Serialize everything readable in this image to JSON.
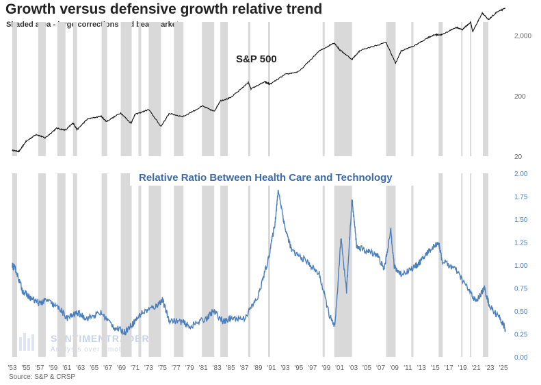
{
  "title": "Growth versus defensive growth relative trend",
  "subtitle": "Shaded area - large corrections and bear markets",
  "source": "Source: S&P & CRSP",
  "watermark": {
    "name": "SENTIMENTRADER",
    "tagline": "Analysis over Emotion"
  },
  "colors": {
    "shade": "#d9d9d9",
    "top_line": "#111111",
    "bottom_line": "#4a7ebb",
    "bottom_axis": "#4a7ebb"
  },
  "chart_data": [
    {
      "type": "line",
      "annotation": "S&P 500",
      "scale": "log",
      "ylim": [
        20,
        4800
      ],
      "yticks": [
        20,
        200,
        2000
      ],
      "ytick_labels": [
        "20",
        "200",
        "2,000"
      ],
      "xlim": [
        1953,
        2025.6
      ],
      "x": [
        1953.0,
        1954.0,
        1955.0,
        1956.5,
        1957.8,
        1959.5,
        1960.8,
        1961.9,
        1962.5,
        1964,
        1966,
        1966.8,
        1968.9,
        1970.4,
        1971,
        1973,
        1974.8,
        1976,
        1978,
        1980.9,
        1982.6,
        1983.5,
        1985,
        1987.6,
        1988,
        1990,
        1990.8,
        1993,
        1995,
        1998,
        2000.2,
        2001,
        2002.8,
        2004,
        2007.8,
        2009.2,
        2010,
        2012,
        2014,
        2015,
        2016,
        2018,
        2019,
        2020.2,
        2020.5,
        2021.9,
        2022.8,
        2024,
        2025.3
      ],
      "values": [
        25,
        24,
        35,
        46,
        40,
        58,
        54,
        71,
        55,
        82,
        92,
        75,
        104,
        70,
        98,
        118,
        62,
        102,
        90,
        135,
        110,
        165,
        185,
        330,
        260,
        340,
        310,
        450,
        500,
        1100,
        1500,
        1150,
        800,
        1130,
        1520,
        690,
        1100,
        1350,
        1850,
        2050,
        2040,
        2700,
        2500,
        3300,
        2300,
        4700,
        3600,
        4800,
        5600
      ],
      "shaded_periods": [
        [
          1953.0,
          1953.7
        ],
        [
          1956.8,
          1957.9
        ],
        [
          1959.6,
          1960.8
        ],
        [
          1961.9,
          1962.5
        ],
        [
          1966.1,
          1966.9
        ],
        [
          1968.9,
          1970.5
        ],
        [
          1971.5,
          1971.9
        ],
        [
          1973.0,
          1974.8
        ],
        [
          1976.7,
          1978.1
        ],
        [
          1980.8,
          1982.6
        ],
        [
          1983.5,
          1984.6
        ],
        [
          1987.6,
          1987.9
        ],
        [
          1990.5,
          1990.8
        ],
        [
          1998.5,
          1998.8
        ],
        [
          2000.2,
          2002.8
        ],
        [
          2007.8,
          2009.2
        ],
        [
          2011.5,
          2011.8
        ],
        [
          2015.5,
          2016.1
        ],
        [
          2018.8,
          2018.9
        ],
        [
          2020.1,
          2020.3
        ],
        [
          2022.0,
          2022.8
        ]
      ]
    },
    {
      "type": "line",
      "title": "Relative Ratio Between Health Care and Technology",
      "ylim": [
        0.0,
        2.0
      ],
      "yticks": [
        "0.00",
        "0.25",
        "0.50",
        "0.75",
        "1.00",
        "1.25",
        "1.50",
        "1.75",
        "2.00"
      ],
      "xlim": [
        1953,
        2025.6
      ],
      "xticks": [
        "'53",
        "'55",
        "'57",
        "'59",
        "'61",
        "'63",
        "'65",
        "'67",
        "'69",
        "'71",
        "'73",
        "'75",
        "'77",
        "'79",
        "'81",
        "'83",
        "'85",
        "'87",
        "'89",
        "'91",
        "'93",
        "'95",
        "'97",
        "'99",
        "'01",
        "'03",
        "'05",
        "'07",
        "'09",
        "'11",
        "'13",
        "'15",
        "'17",
        "'19",
        "'21",
        "'23",
        "'25"
      ],
      "x": [
        1953.0,
        1953.5,
        1954.5,
        1955.5,
        1957,
        1958,
        1960,
        1961,
        1962.5,
        1964,
        1966,
        1968,
        1969.5,
        1970.5,
        1972,
        1974,
        1975,
        1976,
        1978,
        1979,
        1981.5,
        1982.5,
        1984,
        1985,
        1987,
        1989,
        1990.5,
        1991.5,
        1992,
        1993,
        1994,
        1996,
        1998,
        1999.5,
        2000.3,
        2001.2,
        2002,
        2002.8,
        2003.5,
        2005,
        2006.5,
        2007.5,
        2008.5,
        2009,
        2010,
        2012,
        2013,
        2014,
        2015.5,
        2016,
        2018,
        2020,
        2021,
        2022.2,
        2023,
        2024.5,
        2025.3
      ],
      "values": [
        1.0,
        0.95,
        0.72,
        0.65,
        0.58,
        0.62,
        0.52,
        0.42,
        0.48,
        0.42,
        0.48,
        0.32,
        0.27,
        0.35,
        0.48,
        0.55,
        0.62,
        0.4,
        0.38,
        0.33,
        0.42,
        0.5,
        0.38,
        0.42,
        0.42,
        0.65,
        1.05,
        1.45,
        1.82,
        1.4,
        1.15,
        1.05,
        0.9,
        0.45,
        0.32,
        1.3,
        0.72,
        1.72,
        1.2,
        1.15,
        1.12,
        0.95,
        1.38,
        0.98,
        0.9,
        0.98,
        1.05,
        1.15,
        1.25,
        1.05,
        0.95,
        0.72,
        0.6,
        0.75,
        0.55,
        0.42,
        0.3
      ],
      "shaded_periods": [
        [
          1953.0,
          1953.7
        ],
        [
          1956.8,
          1957.9
        ],
        [
          1959.6,
          1960.8
        ],
        [
          1961.9,
          1962.5
        ],
        [
          1966.1,
          1966.9
        ],
        [
          1968.9,
          1970.5
        ],
        [
          1971.5,
          1971.9
        ],
        [
          1973.0,
          1974.8
        ],
        [
          1976.7,
          1978.1
        ],
        [
          1980.8,
          1982.6
        ],
        [
          1983.5,
          1984.6
        ],
        [
          1987.6,
          1987.9
        ],
        [
          1990.5,
          1990.8
        ],
        [
          1998.5,
          1998.8
        ],
        [
          2000.2,
          2002.8
        ],
        [
          2007.8,
          2009.2
        ],
        [
          2011.5,
          2011.8
        ],
        [
          2015.5,
          2016.1
        ],
        [
          2018.8,
          2018.9
        ],
        [
          2020.1,
          2020.3
        ],
        [
          2022.0,
          2022.8
        ]
      ]
    }
  ]
}
